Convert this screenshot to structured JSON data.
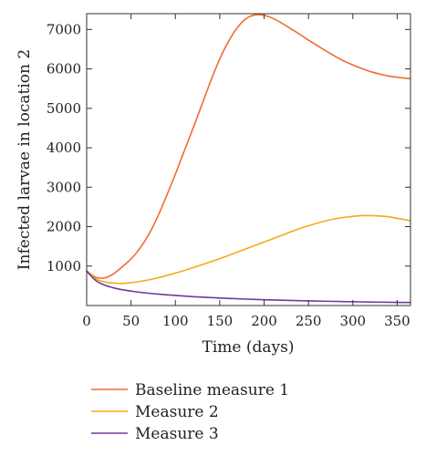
{
  "chart_data": {
    "type": "line",
    "xlabel": "Time (days)",
    "ylabel": "Infected larvae in location 2",
    "xlim": [
      0,
      365
    ],
    "ylim": [
      0,
      7400
    ],
    "x_ticks": [
      0,
      50,
      100,
      150,
      200,
      250,
      300,
      350
    ],
    "y_ticks": [
      1000,
      2000,
      3000,
      4000,
      5000,
      6000,
      7000
    ],
    "grid": false,
    "legend_position": "below",
    "series": [
      {
        "name": "Baseline measure 1",
        "color": "#f26b2a",
        "x": [
          0,
          10,
          20,
          30,
          40,
          50,
          60,
          70,
          80,
          90,
          100,
          110,
          120,
          130,
          140,
          150,
          160,
          170,
          180,
          190,
          200,
          210,
          220,
          230,
          240,
          250,
          260,
          270,
          280,
          290,
          300,
          310,
          320,
          330,
          340,
          350,
          365
        ],
        "y": [
          880,
          720,
          700,
          800,
          980,
          1180,
          1450,
          1800,
          2250,
          2780,
          3330,
          3920,
          4500,
          5100,
          5700,
          6250,
          6700,
          7050,
          7280,
          7370,
          7360,
          7280,
          7160,
          7020,
          6880,
          6730,
          6590,
          6450,
          6320,
          6200,
          6100,
          6010,
          5930,
          5870,
          5820,
          5790,
          5750
        ]
      },
      {
        "name": "Measure 2",
        "color": "#f6a91b",
        "x": [
          0,
          10,
          20,
          30,
          40,
          50,
          60,
          70,
          80,
          90,
          100,
          120,
          140,
          160,
          180,
          200,
          220,
          240,
          260,
          280,
          300,
          310,
          320,
          330,
          340,
          350,
          365
        ],
        "y": [
          870,
          680,
          600,
          570,
          560,
          580,
          610,
          650,
          700,
          760,
          820,
          960,
          1110,
          1270,
          1440,
          1610,
          1780,
          1950,
          2090,
          2200,
          2260,
          2280,
          2280,
          2270,
          2250,
          2210,
          2150
        ]
      },
      {
        "name": "Measure 3",
        "color": "#6a3d9a",
        "x": [
          0,
          10,
          20,
          30,
          40,
          50,
          60,
          80,
          100,
          120,
          140,
          160,
          180,
          200,
          220,
          240,
          260,
          280,
          300,
          320,
          340,
          365
        ],
        "y": [
          870,
          640,
          520,
          450,
          400,
          365,
          335,
          290,
          255,
          225,
          200,
          180,
          162,
          147,
          134,
          123,
          113,
          104,
          96,
          89,
          83,
          76
        ]
      }
    ]
  }
}
